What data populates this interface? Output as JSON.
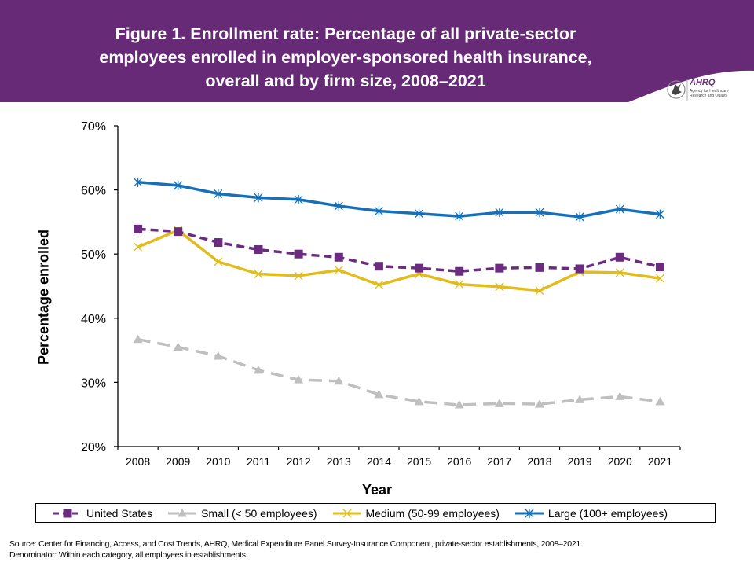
{
  "header": {
    "title_lines": [
      "Figure 1. Enrollment rate: Percentage of all private-sector",
      "employees enrolled in employer-sponsored health insurance,",
      "overall and by firm size, 2008–2021"
    ],
    "background_color": "#662a76",
    "logo": {
      "icon": "hhs-eagle-icon",
      "name": "AHRQ",
      "subtitle": "Agency for Healthcare Research and Quality"
    }
  },
  "chart_data": {
    "type": "line",
    "title": "Figure 1. Enrollment rate: Percentage of all private-sector employees enrolled in employer-sponsored health insurance, overall and by firm size, 2008–2021",
    "xlabel": "Year",
    "ylabel": "Percentage enrolled",
    "ylim": [
      20,
      70
    ],
    "yticks": [
      20,
      30,
      40,
      50,
      60,
      70
    ],
    "ytick_labels": [
      "20%",
      "30%",
      "40%",
      "50%",
      "60%",
      "70%"
    ],
    "grid": false,
    "legend_position": "bottom",
    "categories": [
      "2008",
      "2009",
      "2010",
      "2011",
      "2012",
      "2013",
      "2014",
      "2015",
      "2016",
      "2017",
      "2018",
      "2019",
      "2020",
      "2021"
    ],
    "series": [
      {
        "name": "United States",
        "color": "#6b2c7f",
        "line_style": "dashed",
        "marker": "square",
        "values": [
          53.9,
          53.5,
          51.8,
          50.7,
          50.0,
          49.5,
          48.1,
          47.8,
          47.3,
          47.8,
          47.9,
          47.7,
          49.5,
          48.0
        ]
      },
      {
        "name": "Small (< 50 employees)",
        "color": "#bfbfbf",
        "line_style": "dashed",
        "marker": "triangle",
        "values": [
          36.7,
          35.5,
          34.1,
          31.9,
          30.4,
          30.2,
          28.1,
          27.0,
          26.5,
          26.7,
          26.6,
          27.3,
          27.8,
          27.0
        ]
      },
      {
        "name": "Medium (50-99 employees)",
        "color": "#e2bc1b",
        "line_style": "solid",
        "marker": "x",
        "values": [
          51.1,
          53.7,
          48.8,
          46.9,
          46.6,
          47.5,
          45.2,
          46.9,
          45.3,
          44.9,
          44.3,
          47.2,
          47.1,
          46.2
        ]
      },
      {
        "name": "Large (100+ employees)",
        "color": "#1670b9",
        "line_style": "solid",
        "marker": "asterisk",
        "values": [
          61.2,
          60.7,
          59.4,
          58.8,
          58.5,
          57.5,
          56.7,
          56.3,
          55.9,
          56.5,
          56.5,
          55.8,
          57.0,
          56.2
        ]
      }
    ]
  },
  "footer": {
    "source": "Source: Center for Financing, Access, and Cost Trends, AHRQ, Medical Expenditure Panel Survey-Insurance Component, private-sector establishments, 2008–2021.",
    "denominator": "Denominator: Within each category, all employees in establishments."
  }
}
